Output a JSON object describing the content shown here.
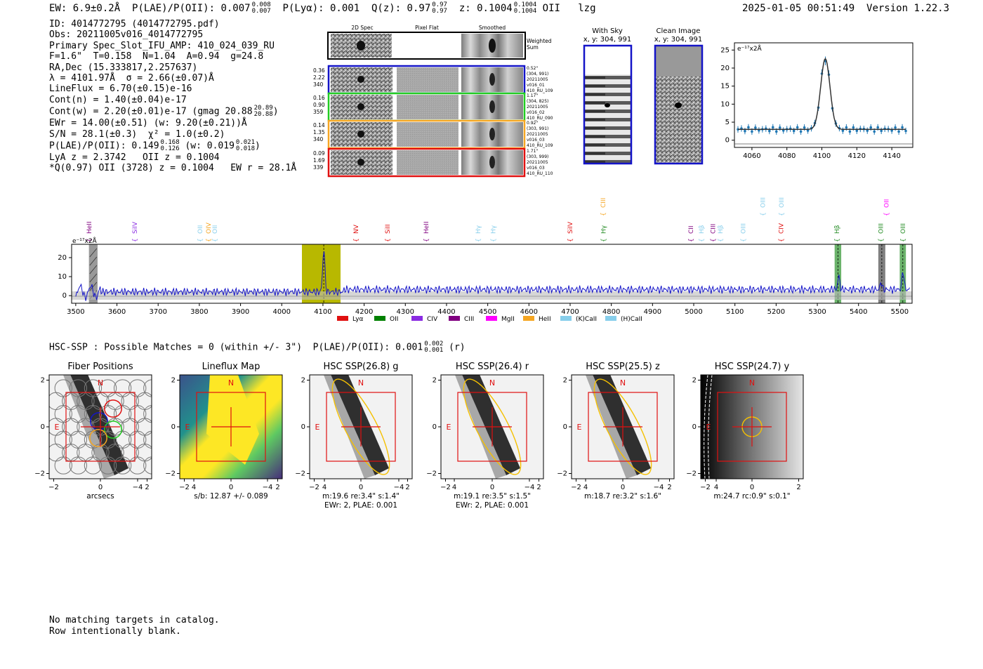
{
  "header": {
    "ew": "EW: 6.9±0.2Å",
    "plae_label": "P(LAE)/P(OII): 0.007",
    "plae_hi": "0.008",
    "plae_lo": "0.007",
    "plya": "P(Lyα): 0.001",
    "q_label": "Q(z): 0.97",
    "q_hi": "0.97",
    "q_lo": "0.97",
    "z_label": "z: 0.1004",
    "z_hi": "0.1004",
    "z_lo": "0.1004",
    "line": "OII",
    "tag": "lzg",
    "timestamp": "2025-01-05 00:51:49",
    "version": "Version 1.22.3"
  },
  "info": {
    "id": "ID: 4014772795 (4014772795.pdf)",
    "obs": "Obs: 20211005v016_4014772795",
    "slot": "Primary Spec_Slot_IFU_AMP: 410_024_039_RU",
    "params": "F=1.6\"  T=0.158  N=1.04  A=0.94  g=24.8",
    "radec": "RA,Dec (15.333817,2.257637)",
    "lambda": "λ = 4101.97Å  σ = 2.66(±0.07)Å",
    "lineflux": "LineFlux = 6.70(±0.15)e-16",
    "contn": "Cont(n) = 1.40(±0.04)e-17",
    "contw": "Cont(w) = 2.20(±0.01)e-17 (gmag 20.88",
    "contw_hi": "20.89",
    "contw_lo": "20.88",
    "contw_end": ")",
    "ewr": "EWr = 14.00(±0.51) (w: 9.20(±0.21))Å",
    "sn": "S/N = 28.1(±0.3)  χ² = 1.0(±0.2)",
    "plae2": "P(LAE)/P(OII): 0.149",
    "plae2_hi": "0.168",
    "plae2_lo": "0.126",
    "plae2_mid": " (w: 0.019",
    "plae2_w_hi": "0.021",
    "plae2_w_lo": "0.018",
    "plae2_end": ")",
    "lya": "LyA z = 2.3742   OII z = 0.1004",
    "q": "*Q(0.97) OII (3728) z = 0.1004   EW r = 28.1Å"
  },
  "cutouts": {
    "col_titles": [
      "2D Spec",
      "Pixel Flat",
      "Smoothed"
    ],
    "weighted_label": [
      "Weighted",
      "Sum"
    ],
    "rows": [
      {
        "vals": [
          "0.36",
          "2.22",
          "340"
        ],
        "color": "#1414c8",
        "label": [
          "0.52\"",
          "(304, 991)",
          "20211005",
          "v016_01",
          "410_RU_109"
        ]
      },
      {
        "vals": [
          "0.16",
          "0.90",
          "359"
        ],
        "color": "#22cc22",
        "label": [
          "1.17\"",
          "(304, 825)",
          "20211005",
          "v016_02",
          "410_RU_090"
        ]
      },
      {
        "vals": [
          "0.14",
          "1.35",
          "340"
        ],
        "color": "#f5a623",
        "label": [
          "0.92\"",
          "(303, 991)",
          "20211005",
          "v016_03",
          "410_RU_109"
        ]
      },
      {
        "vals": [
          "0.09",
          "1.69",
          "339"
        ],
        "color": "#e01010",
        "label": [
          "1.71\"",
          "(303, 999)",
          "20211005",
          "v016_03",
          "410_RU_110"
        ]
      }
    ]
  },
  "sky": {
    "with_sky_title": "With Sky",
    "with_sky_coord": "x, y: 304, 991",
    "clean_title": "Clean Image",
    "clean_coord": "x, y: 304, 991"
  },
  "zoom_chart": {
    "unit_label": "e⁻¹⁷x2Å",
    "xticks": [
      "4060",
      "4080",
      "4100",
      "4120",
      "4140"
    ],
    "yticks": [
      "0",
      "5",
      "10",
      "15",
      "20",
      "25"
    ]
  },
  "full_spec": {
    "unit_label": "e⁻¹⁷x2Å",
    "xticks": [
      "3500",
      "3600",
      "3700",
      "3800",
      "3900",
      "4000",
      "4100",
      "4200",
      "4300",
      "4400",
      "4500",
      "4600",
      "4700",
      "4800",
      "4900",
      "5000",
      "5100",
      "5200",
      "5300",
      "5400",
      "5500"
    ],
    "yticks": [
      "0",
      "10",
      "20"
    ],
    "line_labels": [
      {
        "t": "HeII",
        "w": 3533,
        "c": "#800080",
        "h": 1
      },
      {
        "t": "SiIV",
        "w": 3643,
        "c": "#8a2be2",
        "h": 1
      },
      {
        "t": "OII",
        "w": 3802,
        "c": "#87ceeb",
        "h": 1
      },
      {
        "t": "OIV",
        "w": 3822,
        "c": "#f5a623",
        "h": 1
      },
      {
        "t": "OII",
        "w": 3838,
        "c": "#87ceeb",
        "h": 1
      },
      {
        "t": "NV",
        "w": 4180,
        "c": "#e01010",
        "h": 1
      },
      {
        "t": "SiII",
        "w": 4257,
        "c": "#e01010",
        "h": 1
      },
      {
        "t": "HeII",
        "w": 4351,
        "c": "#800080",
        "h": 1
      },
      {
        "t": "Hγ",
        "w": 4477,
        "c": "#87ceeb",
        "h": 1
      },
      {
        "t": "Hγ",
        "w": 4513,
        "c": "#87ceeb",
        "h": 1
      },
      {
        "t": "SiIV",
        "w": 4700,
        "c": "#e01010",
        "h": 1
      },
      {
        "t": "CIII",
        "w": 4780,
        "c": "#f5a623",
        "h": 3
      },
      {
        "t": "Hγ",
        "w": 4781,
        "c": "#228b22",
        "h": 1
      },
      {
        "t": "CII",
        "w": 4993,
        "c": "#800080",
        "h": 1
      },
      {
        "t": "Hβ",
        "w": 5019,
        "c": "#87ceeb",
        "h": 1
      },
      {
        "t": "CIII",
        "w": 5047,
        "c": "#800080",
        "h": 1
      },
      {
        "t": "Hβ",
        "w": 5065,
        "c": "#87ceeb",
        "h": 1
      },
      {
        "t": "OIII",
        "w": 5120,
        "c": "#87ceeb",
        "h": 1
      },
      {
        "t": "OIII",
        "w": 5168,
        "c": "#87ceeb",
        "h": 3
      },
      {
        "t": "OIII",
        "w": 5213,
        "c": "#87ceeb",
        "h": 3
      },
      {
        "t": "CIV",
        "w": 5212,
        "c": "#e01010",
        "h": 1
      },
      {
        "t": "Hβ",
        "w": 5348,
        "c": "#228b22",
        "h": 1
      },
      {
        "t": "OII",
        "w": 5468,
        "c": "#ff00ff",
        "h": 3
      },
      {
        "t": "OIII",
        "w": 5454,
        "c": "#228b22",
        "h": 1
      },
      {
        "t": "OIII",
        "w": 5508,
        "c": "#228b22",
        "h": 1
      }
    ],
    "legend": [
      {
        "t": "Lyα",
        "c": "#e01010"
      },
      {
        "t": "OII",
        "c": "#008000"
      },
      {
        "t": "CIV",
        "c": "#8a2be2"
      },
      {
        "t": "CIII",
        "c": "#800080"
      },
      {
        "t": "MgII",
        "c": "#ff00ff"
      },
      {
        "t": "HeII",
        "c": "#f5a623"
      },
      {
        "t": "(K)CaII",
        "c": "#87ceeb"
      },
      {
        "t": "(H)CaII",
        "c": "#87ceeb"
      }
    ]
  },
  "hsc": {
    "title": "HSC-SSP : Possible Matches = 0 (within +/- 3\")  P(LAE)/P(OII): 0.001",
    "title_hi": "0.002",
    "title_lo": "0.001",
    "title_end": " (r)",
    "axis_ticks": [
      "−4",
      "−2",
      "0",
      "2",
      "4"
    ],
    "panels": [
      {
        "title": "Fiber Positions",
        "cap1": "arcsecs",
        "cap2": ""
      },
      {
        "title": "Lineflux Map",
        "cap1": "s/b: 12.87 +/- 0.089",
        "cap2": ""
      },
      {
        "title": "HSC SSP(26.8) g",
        "cap1": "m:19.6  re:3.4\"  s:1.4\"",
        "cap2": "EWr: 2, PLAE: 0.001"
      },
      {
        "title": "HSC SSP(26.4) r",
        "cap1": "m:19.1  re:3.5\"  s:1.5\"",
        "cap2": "EWr: 2, PLAE: 0.001"
      },
      {
        "title": "HSC SSP(25.5) z",
        "cap1": "m:18.7  re:3.2\"  s:1.6\"",
        "cap2": ""
      },
      {
        "title": "HSC SSP(24.7) y",
        "cap1": "m:24.7 rc:0.9\"  s:0.1\"",
        "cap2": ""
      }
    ],
    "n_label": "N",
    "e_label": "E"
  },
  "footer": {
    "line1": "No matching targets in catalog.",
    "line2": "Row intentionally blank."
  }
}
